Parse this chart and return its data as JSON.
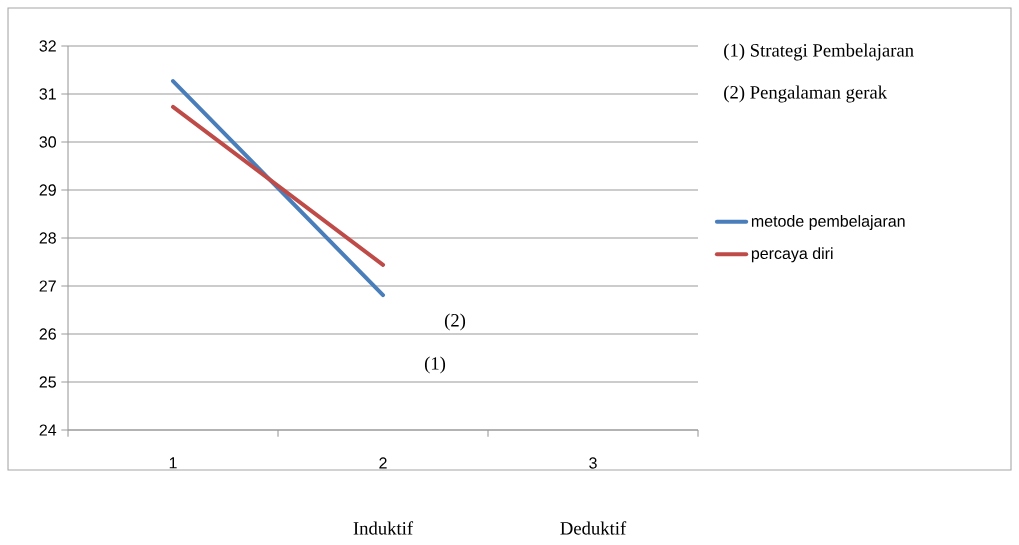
{
  "chart_data": {
    "type": "line",
    "categories": [
      "1",
      "2",
      "3"
    ],
    "series": [
      {
        "name": "metode pembelajaran",
        "color": "#4a7ebb",
        "values": [
          31.27,
          26.81,
          null
        ]
      },
      {
        "name": "percaya diri",
        "color": "#be4b48",
        "values": [
          30.73,
          27.44,
          null
        ]
      }
    ],
    "ylim": [
      24,
      32
    ],
    "yticks": [
      24,
      25,
      26,
      27,
      28,
      29,
      30,
      31,
      32
    ],
    "grid": "y",
    "legend": "right",
    "annotations": [
      "(1) Strategi Pembelajaran",
      "(2) Pengalaman gerak",
      "(2)",
      "(1)",
      "Induktif",
      "Deduktif"
    ]
  }
}
